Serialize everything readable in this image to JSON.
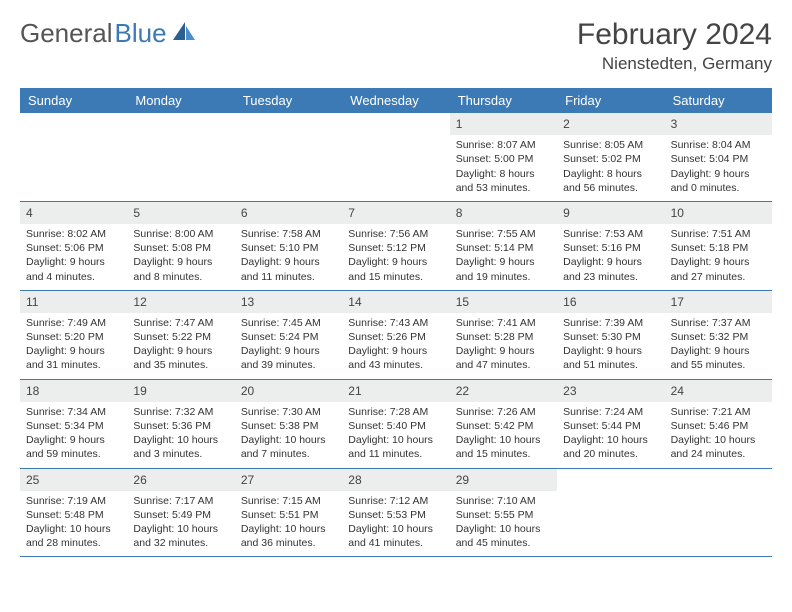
{
  "brand": {
    "part1": "General",
    "part2": "Blue"
  },
  "title": "February 2024",
  "location": "Nienstedten, Germany",
  "colors": {
    "header_bg": "#3b7ab5",
    "header_text": "#ffffff",
    "daynum_bg": "#eceded",
    "border": "#3b7ab5",
    "text": "#333333",
    "brand_gray": "#555555",
    "brand_blue": "#3b7ab5"
  },
  "typography": {
    "title_fontsize": 30,
    "location_fontsize": 17,
    "dayheader_fontsize": 13,
    "daynum_fontsize": 12,
    "body_fontsize": 10.5
  },
  "layout": {
    "columns": 7,
    "rows": 5
  },
  "day_headers": [
    "Sunday",
    "Monday",
    "Tuesday",
    "Wednesday",
    "Thursday",
    "Friday",
    "Saturday"
  ],
  "weeks": [
    [
      {
        "empty": true
      },
      {
        "empty": true
      },
      {
        "empty": true
      },
      {
        "empty": true
      },
      {
        "num": "1",
        "sunrise": "Sunrise: 8:07 AM",
        "sunset": "Sunset: 5:00 PM",
        "daylight": "Daylight: 8 hours and 53 minutes."
      },
      {
        "num": "2",
        "sunrise": "Sunrise: 8:05 AM",
        "sunset": "Sunset: 5:02 PM",
        "daylight": "Daylight: 8 hours and 56 minutes."
      },
      {
        "num": "3",
        "sunrise": "Sunrise: 8:04 AM",
        "sunset": "Sunset: 5:04 PM",
        "daylight": "Daylight: 9 hours and 0 minutes."
      }
    ],
    [
      {
        "num": "4",
        "sunrise": "Sunrise: 8:02 AM",
        "sunset": "Sunset: 5:06 PM",
        "daylight": "Daylight: 9 hours and 4 minutes."
      },
      {
        "num": "5",
        "sunrise": "Sunrise: 8:00 AM",
        "sunset": "Sunset: 5:08 PM",
        "daylight": "Daylight: 9 hours and 8 minutes."
      },
      {
        "num": "6",
        "sunrise": "Sunrise: 7:58 AM",
        "sunset": "Sunset: 5:10 PM",
        "daylight": "Daylight: 9 hours and 11 minutes."
      },
      {
        "num": "7",
        "sunrise": "Sunrise: 7:56 AM",
        "sunset": "Sunset: 5:12 PM",
        "daylight": "Daylight: 9 hours and 15 minutes."
      },
      {
        "num": "8",
        "sunrise": "Sunrise: 7:55 AM",
        "sunset": "Sunset: 5:14 PM",
        "daylight": "Daylight: 9 hours and 19 minutes."
      },
      {
        "num": "9",
        "sunrise": "Sunrise: 7:53 AM",
        "sunset": "Sunset: 5:16 PM",
        "daylight": "Daylight: 9 hours and 23 minutes."
      },
      {
        "num": "10",
        "sunrise": "Sunrise: 7:51 AM",
        "sunset": "Sunset: 5:18 PM",
        "daylight": "Daylight: 9 hours and 27 minutes."
      }
    ],
    [
      {
        "num": "11",
        "sunrise": "Sunrise: 7:49 AM",
        "sunset": "Sunset: 5:20 PM",
        "daylight": "Daylight: 9 hours and 31 minutes."
      },
      {
        "num": "12",
        "sunrise": "Sunrise: 7:47 AM",
        "sunset": "Sunset: 5:22 PM",
        "daylight": "Daylight: 9 hours and 35 minutes."
      },
      {
        "num": "13",
        "sunrise": "Sunrise: 7:45 AM",
        "sunset": "Sunset: 5:24 PM",
        "daylight": "Daylight: 9 hours and 39 minutes."
      },
      {
        "num": "14",
        "sunrise": "Sunrise: 7:43 AM",
        "sunset": "Sunset: 5:26 PM",
        "daylight": "Daylight: 9 hours and 43 minutes."
      },
      {
        "num": "15",
        "sunrise": "Sunrise: 7:41 AM",
        "sunset": "Sunset: 5:28 PM",
        "daylight": "Daylight: 9 hours and 47 minutes."
      },
      {
        "num": "16",
        "sunrise": "Sunrise: 7:39 AM",
        "sunset": "Sunset: 5:30 PM",
        "daylight": "Daylight: 9 hours and 51 minutes."
      },
      {
        "num": "17",
        "sunrise": "Sunrise: 7:37 AM",
        "sunset": "Sunset: 5:32 PM",
        "daylight": "Daylight: 9 hours and 55 minutes."
      }
    ],
    [
      {
        "num": "18",
        "sunrise": "Sunrise: 7:34 AM",
        "sunset": "Sunset: 5:34 PM",
        "daylight": "Daylight: 9 hours and 59 minutes."
      },
      {
        "num": "19",
        "sunrise": "Sunrise: 7:32 AM",
        "sunset": "Sunset: 5:36 PM",
        "daylight": "Daylight: 10 hours and 3 minutes."
      },
      {
        "num": "20",
        "sunrise": "Sunrise: 7:30 AM",
        "sunset": "Sunset: 5:38 PM",
        "daylight": "Daylight: 10 hours and 7 minutes."
      },
      {
        "num": "21",
        "sunrise": "Sunrise: 7:28 AM",
        "sunset": "Sunset: 5:40 PM",
        "daylight": "Daylight: 10 hours and 11 minutes."
      },
      {
        "num": "22",
        "sunrise": "Sunrise: 7:26 AM",
        "sunset": "Sunset: 5:42 PM",
        "daylight": "Daylight: 10 hours and 15 minutes."
      },
      {
        "num": "23",
        "sunrise": "Sunrise: 7:24 AM",
        "sunset": "Sunset: 5:44 PM",
        "daylight": "Daylight: 10 hours and 20 minutes."
      },
      {
        "num": "24",
        "sunrise": "Sunrise: 7:21 AM",
        "sunset": "Sunset: 5:46 PM",
        "daylight": "Daylight: 10 hours and 24 minutes."
      }
    ],
    [
      {
        "num": "25",
        "sunrise": "Sunrise: 7:19 AM",
        "sunset": "Sunset: 5:48 PM",
        "daylight": "Daylight: 10 hours and 28 minutes."
      },
      {
        "num": "26",
        "sunrise": "Sunrise: 7:17 AM",
        "sunset": "Sunset: 5:49 PM",
        "daylight": "Daylight: 10 hours and 32 minutes."
      },
      {
        "num": "27",
        "sunrise": "Sunrise: 7:15 AM",
        "sunset": "Sunset: 5:51 PM",
        "daylight": "Daylight: 10 hours and 36 minutes."
      },
      {
        "num": "28",
        "sunrise": "Sunrise: 7:12 AM",
        "sunset": "Sunset: 5:53 PM",
        "daylight": "Daylight: 10 hours and 41 minutes."
      },
      {
        "num": "29",
        "sunrise": "Sunrise: 7:10 AM",
        "sunset": "Sunset: 5:55 PM",
        "daylight": "Daylight: 10 hours and 45 minutes."
      },
      {
        "empty": true
      },
      {
        "empty": true
      }
    ]
  ]
}
